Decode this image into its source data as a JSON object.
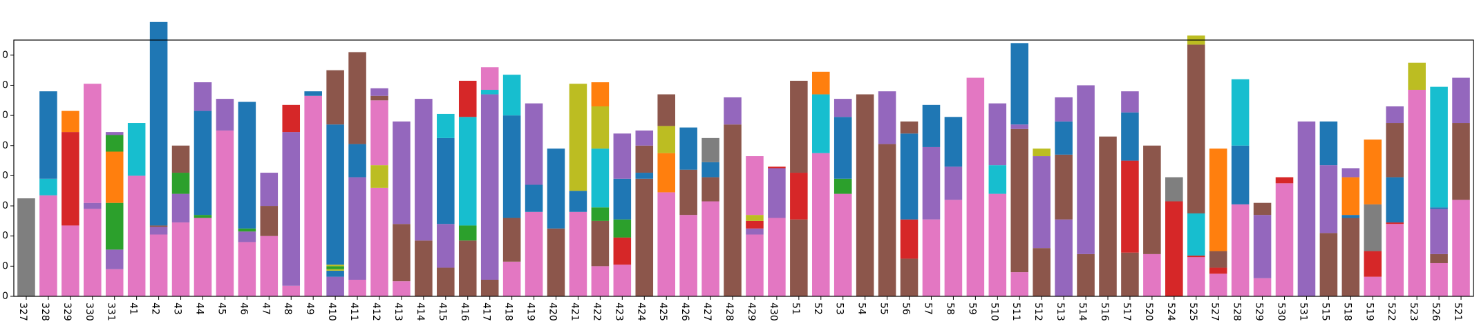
{
  "chart_data": {
    "type": "bar",
    "stacked": true,
    "title": "",
    "xlabel": "",
    "ylabel": "",
    "ylim": [
      0,
      85
    ],
    "yticks": [
      0,
      10,
      20,
      30,
      40,
      50,
      60,
      70,
      80
    ],
    "ytick_labels": [
      "0",
      "0",
      "0",
      "0",
      "0",
      "0",
      "0",
      "0",
      "0"
    ],
    "grid": false,
    "legend": "none",
    "colors": {
      "pink": "#e377c2",
      "brown": "#8c564b",
      "purple": "#9467bd",
      "blue": "#1f77b4",
      "cyan": "#17becf",
      "red": "#d62728",
      "orange": "#ff7f0e",
      "green": "#2ca02c",
      "olive": "#bcbd22",
      "gray": "#7f7f7f"
    },
    "bars": [
      {
        "label": "327",
        "segments": [
          [
            "gray",
            32.5
          ]
        ]
      },
      {
        "label": "328",
        "segments": [
          [
            "pink",
            33.5
          ],
          [
            "cyan",
            5.5
          ],
          [
            "blue",
            29
          ]
        ]
      },
      {
        "label": "329",
        "segments": [
          [
            "pink",
            23.5
          ],
          [
            "red",
            31
          ],
          [
            "orange",
            7
          ]
        ]
      },
      {
        "label": "330",
        "segments": [
          [
            "pink",
            29
          ],
          [
            "purple",
            2
          ],
          [
            "pink",
            39.5
          ]
        ]
      },
      {
        "label": "331",
        "segments": [
          [
            "pink",
            9
          ],
          [
            "purple",
            6.5
          ],
          [
            "green",
            15.5
          ],
          [
            "orange",
            17
          ],
          [
            "green",
            5.5
          ],
          [
            "purple",
            1
          ]
        ]
      },
      {
        "label": "41",
        "segments": [
          [
            "pink",
            40
          ],
          [
            "cyan",
            17.5
          ]
        ]
      },
      {
        "label": "42",
        "segments": [
          [
            "pink",
            20.5
          ],
          [
            "purple",
            2.5
          ],
          [
            "brown",
            0.5
          ],
          [
            "blue",
            67.5
          ]
        ]
      },
      {
        "label": "43",
        "segments": [
          [
            "pink",
            24.5
          ],
          [
            "purple",
            9.5
          ],
          [
            "green",
            7
          ],
          [
            "brown",
            9
          ]
        ]
      },
      {
        "label": "44",
        "segments": [
          [
            "pink",
            26
          ],
          [
            "green",
            1
          ],
          [
            "blue",
            34.5
          ],
          [
            "purple",
            9.5
          ]
        ]
      },
      {
        "label": "45",
        "segments": [
          [
            "pink",
            55
          ],
          [
            "purple",
            10.5
          ]
        ]
      },
      {
        "label": "46",
        "segments": [
          [
            "pink",
            18
          ],
          [
            "purple",
            3.5
          ],
          [
            "green",
            1
          ],
          [
            "blue",
            42
          ]
        ]
      },
      {
        "label": "47",
        "segments": [
          [
            "pink",
            20
          ],
          [
            "brown",
            10
          ],
          [
            "purple",
            11
          ]
        ]
      },
      {
        "label": "48",
        "segments": [
          [
            "pink",
            3.5
          ],
          [
            "purple",
            51
          ],
          [
            "red",
            9
          ]
        ]
      },
      {
        "label": "49",
        "segments": [
          [
            "pink",
            66.5
          ],
          [
            "blue",
            1.5
          ]
        ]
      },
      {
        "label": "410",
        "segments": [
          [
            "purple",
            6.5
          ],
          [
            "blue",
            2
          ],
          [
            "olive",
            0.5
          ],
          [
            "green",
            1
          ],
          [
            "olive",
            0.5
          ],
          [
            "blue",
            46.5
          ],
          [
            "brown",
            18
          ]
        ]
      },
      {
        "label": "411",
        "segments": [
          [
            "pink",
            5.5
          ],
          [
            "purple",
            34
          ],
          [
            "blue",
            11
          ],
          [
            "brown",
            30.5
          ]
        ]
      },
      {
        "label": "412",
        "segments": [
          [
            "pink",
            36
          ],
          [
            "olive",
            7.5
          ],
          [
            "pink",
            21.5
          ],
          [
            "brown",
            1.5
          ],
          [
            "purple",
            2.5
          ]
        ]
      },
      {
        "label": "413",
        "segments": [
          [
            "pink",
            5
          ],
          [
            "brown",
            19
          ],
          [
            "purple",
            34
          ]
        ]
      },
      {
        "label": "414",
        "segments": [
          [
            "brown",
            18.5
          ],
          [
            "purple",
            47
          ]
        ]
      },
      {
        "label": "415",
        "segments": [
          [
            "brown",
            9.5
          ],
          [
            "purple",
            14.5
          ],
          [
            "blue",
            28.5
          ],
          [
            "cyan",
            8
          ]
        ]
      },
      {
        "label": "416",
        "segments": [
          [
            "brown",
            18.5
          ],
          [
            "green",
            5
          ],
          [
            "cyan",
            36
          ],
          [
            "red",
            12
          ]
        ]
      },
      {
        "label": "417",
        "segments": [
          [
            "brown",
            5.5
          ],
          [
            "purple",
            61.5
          ],
          [
            "cyan",
            1.5
          ],
          [
            "pink",
            7.5
          ]
        ]
      },
      {
        "label": "418",
        "segments": [
          [
            "pink",
            11.5
          ],
          [
            "brown",
            14.5
          ],
          [
            "blue",
            34
          ],
          [
            "cyan",
            13.5
          ]
        ]
      },
      {
        "label": "419",
        "segments": [
          [
            "pink",
            28
          ],
          [
            "blue",
            9
          ],
          [
            "purple",
            27
          ]
        ]
      },
      {
        "label": "420",
        "segments": [
          [
            "brown",
            22.5
          ],
          [
            "blue",
            26.5
          ]
        ]
      },
      {
        "label": "421",
        "segments": [
          [
            "pink",
            28
          ],
          [
            "blue",
            7
          ],
          [
            "olive",
            35.5
          ]
        ]
      },
      {
        "label": "422",
        "segments": [
          [
            "pink",
            10
          ],
          [
            "brown",
            15
          ],
          [
            "green",
            4.5
          ],
          [
            "cyan",
            19.5
          ],
          [
            "olive",
            14
          ],
          [
            "orange",
            8
          ]
        ]
      },
      {
        "label": "423",
        "segments": [
          [
            "pink",
            10.5
          ],
          [
            "red",
            9
          ],
          [
            "green",
            6
          ],
          [
            "blue",
            13.5
          ],
          [
            "purple",
            15
          ]
        ]
      },
      {
        "label": "424",
        "segments": [
          [
            "brown",
            39
          ],
          [
            "blue",
            2
          ],
          [
            "brown",
            9
          ],
          [
            "purple",
            5
          ]
        ]
      },
      {
        "label": "425",
        "segments": [
          [
            "pink",
            34.5
          ],
          [
            "orange",
            13
          ],
          [
            "olive",
            9
          ],
          [
            "brown",
            10.5
          ]
        ]
      },
      {
        "label": "426",
        "segments": [
          [
            "pink",
            27
          ],
          [
            "brown",
            15
          ],
          [
            "blue",
            14
          ]
        ]
      },
      {
        "label": "427",
        "segments": [
          [
            "pink",
            31.5
          ],
          [
            "brown",
            8
          ],
          [
            "blue",
            5
          ],
          [
            "gray",
            8
          ]
        ]
      },
      {
        "label": "428",
        "segments": [
          [
            "brown",
            57
          ],
          [
            "purple",
            9
          ]
        ]
      },
      {
        "label": "429",
        "segments": [
          [
            "pink",
            20.5
          ],
          [
            "purple",
            2
          ],
          [
            "red",
            2.5
          ],
          [
            "olive",
            2
          ],
          [
            "pink",
            19.5
          ]
        ]
      },
      {
        "label": "430",
        "segments": [
          [
            "pink",
            26
          ],
          [
            "purple",
            16.5
          ],
          [
            "red",
            0.5
          ]
        ]
      },
      {
        "label": "51",
        "segments": [
          [
            "brown",
            25.5
          ],
          [
            "red",
            15.5
          ],
          [
            "brown",
            30.5
          ]
        ]
      },
      {
        "label": "52",
        "segments": [
          [
            "pink",
            47.5
          ],
          [
            "cyan",
            19.5
          ],
          [
            "orange",
            7.5
          ]
        ]
      },
      {
        "label": "53",
        "segments": [
          [
            "pink",
            34
          ],
          [
            "green",
            5
          ],
          [
            "blue",
            20.5
          ],
          [
            "purple",
            6
          ]
        ]
      },
      {
        "label": "54",
        "segments": [
          [
            "brown",
            67
          ]
        ]
      },
      {
        "label": "55",
        "segments": [
          [
            "brown",
            50.5
          ],
          [
            "purple",
            17.5
          ]
        ]
      },
      {
        "label": "56",
        "segments": [
          [
            "brown",
            12.5
          ],
          [
            "red",
            13
          ],
          [
            "blue",
            28.5
          ],
          [
            "brown",
            4
          ]
        ]
      },
      {
        "label": "57",
        "segments": [
          [
            "pink",
            25.5
          ],
          [
            "purple",
            24
          ],
          [
            "blue",
            14
          ]
        ]
      },
      {
        "label": "58",
        "segments": [
          [
            "pink",
            32
          ],
          [
            "purple",
            11
          ],
          [
            "blue",
            16.5
          ]
        ]
      },
      {
        "label": "59",
        "segments": [
          [
            "pink",
            72.5
          ]
        ]
      },
      {
        "label": "510",
        "segments": [
          [
            "pink",
            34
          ],
          [
            "cyan",
            9.5
          ],
          [
            "purple",
            20.5
          ]
        ]
      },
      {
        "label": "511",
        "segments": [
          [
            "pink",
            8
          ],
          [
            "brown",
            47.5
          ],
          [
            "purple",
            1.5
          ],
          [
            "blue",
            27
          ]
        ]
      },
      {
        "label": "512",
        "segments": [
          [
            "brown",
            16
          ],
          [
            "purple",
            30.5
          ],
          [
            "olive",
            2.5
          ]
        ]
      },
      {
        "label": "513",
        "segments": [
          [
            "purple",
            25.5
          ],
          [
            "brown",
            21.5
          ],
          [
            "blue",
            11
          ],
          [
            "purple",
            8
          ]
        ]
      },
      {
        "label": "514",
        "segments": [
          [
            "brown",
            14
          ],
          [
            "purple",
            56
          ]
        ]
      },
      {
        "label": "516",
        "segments": [
          [
            "brown",
            53
          ]
        ]
      },
      {
        "label": "517",
        "segments": [
          [
            "brown",
            14.5
          ],
          [
            "red",
            30.5
          ],
          [
            "blue",
            16
          ],
          [
            "purple",
            7
          ]
        ]
      },
      {
        "label": "520",
        "segments": [
          [
            "pink",
            14
          ],
          [
            "brown",
            36
          ]
        ]
      },
      {
        "label": "524",
        "segments": [
          [
            "red",
            31.5
          ],
          [
            "gray",
            8
          ]
        ]
      },
      {
        "label": "525",
        "segments": [
          [
            "pink",
            13
          ],
          [
            "red",
            0.5
          ],
          [
            "cyan",
            14
          ],
          [
            "brown",
            56
          ],
          [
            "olive",
            3
          ]
        ]
      },
      {
        "label": "527",
        "segments": [
          [
            "pink",
            7.5
          ],
          [
            "red",
            2
          ],
          [
            "brown",
            5.5
          ],
          [
            "orange",
            34
          ]
        ]
      },
      {
        "label": "528",
        "segments": [
          [
            "pink",
            30.5
          ],
          [
            "blue",
            19.5
          ],
          [
            "cyan",
            22
          ]
        ]
      },
      {
        "label": "529",
        "segments": [
          [
            "pink",
            6
          ],
          [
            "purple",
            21
          ],
          [
            "brown",
            4
          ]
        ]
      },
      {
        "label": "530",
        "segments": [
          [
            "pink",
            37.5
          ],
          [
            "red",
            2
          ]
        ]
      },
      {
        "label": "531",
        "segments": [
          [
            "purple",
            58
          ]
        ]
      },
      {
        "label": "515",
        "segments": [
          [
            "brown",
            21
          ],
          [
            "purple",
            22.5
          ],
          [
            "blue",
            14.5
          ]
        ]
      },
      {
        "label": "518",
        "segments": [
          [
            "brown",
            26
          ],
          [
            "blue",
            1
          ],
          [
            "orange",
            12.5
          ],
          [
            "purple",
            3
          ]
        ]
      },
      {
        "label": "519",
        "segments": [
          [
            "pink",
            6.5
          ],
          [
            "red",
            8.5
          ],
          [
            "gray",
            15.5
          ],
          [
            "orange",
            21.5
          ]
        ]
      },
      {
        "label": "522",
        "segments": [
          [
            "pink",
            24
          ],
          [
            "red",
            0.5
          ],
          [
            "blue",
            15
          ],
          [
            "brown",
            18
          ],
          [
            "purple",
            5.5
          ]
        ]
      },
      {
        "label": "523",
        "segments": [
          [
            "pink",
            68.5
          ],
          [
            "olive",
            9
          ]
        ]
      },
      {
        "label": "526",
        "segments": [
          [
            "pink",
            11
          ],
          [
            "brown",
            3
          ],
          [
            "purple",
            15
          ],
          [
            "blue",
            0.5
          ],
          [
            "cyan",
            40
          ]
        ]
      },
      {
        "label": "521",
        "segments": [
          [
            "pink",
            32
          ],
          [
            "brown",
            25.5
          ],
          [
            "purple",
            15
          ]
        ]
      }
    ]
  }
}
